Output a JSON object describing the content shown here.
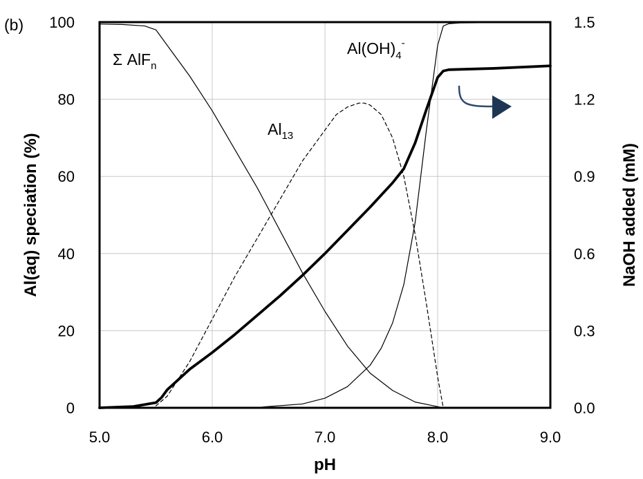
{
  "chart_data": {
    "type": "line",
    "panel_label": "(b)",
    "xlabel": "pH",
    "ylabel_left": "Al(aq) speciation (%)",
    "ylabel_right": "NaOH added (mM)",
    "xlim": [
      5.0,
      9.0
    ],
    "ylim_left": [
      0,
      100
    ],
    "ylim_right": [
      0.0,
      1.5
    ],
    "x_ticks": [
      "5.0",
      "6.0",
      "7.0",
      "8.0",
      "9.0"
    ],
    "y_left_ticks": [
      "0",
      "20",
      "40",
      "60",
      "80",
      "100"
    ],
    "y_right_ticks": [
      "0.0",
      "0.3",
      "0.6",
      "0.9",
      "1.2",
      "1.5"
    ],
    "grid": true,
    "series": [
      {
        "axis": "left",
        "style": "thin",
        "x": [
          5.0,
          5.2,
          5.4,
          5.5,
          5.6,
          5.8,
          6.0,
          6.2,
          6.4,
          6.6,
          6.8,
          7.0,
          7.2,
          7.4,
          7.6,
          7.8,
          8.0,
          8.05
        ],
        "values": [
          99.5,
          99.4,
          99,
          98,
          94,
          86,
          77,
          67,
          57,
          46,
          35,
          25,
          16,
          9,
          4.5,
          1.5,
          0.3,
          0
        ]
      },
      {
        "axis": "left",
        "style": "dashed",
        "x": [
          5.5,
          5.6,
          5.8,
          6.0,
          6.2,
          6.4,
          6.6,
          6.8,
          7.0,
          7.1,
          7.2,
          7.3,
          7.35,
          7.4,
          7.5,
          7.6,
          7.7,
          7.8,
          7.9,
          8.0,
          8.05
        ],
        "values": [
          0.5,
          3,
          12,
          23,
          34,
          44,
          54,
          64,
          72,
          76,
          78,
          79,
          79,
          78.5,
          76,
          70,
          60,
          45,
          27,
          8,
          0
        ]
      },
      {
        "axis": "left",
        "style": "thin",
        "x": [
          6.0,
          6.4,
          6.8,
          7.0,
          7.2,
          7.4,
          7.5,
          7.6,
          7.7,
          7.8,
          7.9,
          8.0,
          8.05,
          8.1,
          8.2,
          9.0
        ],
        "values": [
          0,
          0.1,
          1,
          2.5,
          5.5,
          11,
          15.5,
          22,
          32,
          48,
          72,
          94,
          99,
          99.6,
          99.8,
          100
        ]
      },
      {
        "axis": "right",
        "style": "bold",
        "x": [
          5.0,
          5.3,
          5.5,
          5.55,
          5.6,
          5.8,
          6.0,
          6.2,
          6.4,
          6.6,
          6.8,
          7.0,
          7.2,
          7.4,
          7.6,
          7.7,
          7.8,
          7.9,
          8.0,
          8.05,
          8.1,
          8.5,
          9.0
        ],
        "values": [
          0.0,
          0.005,
          0.02,
          0.04,
          0.07,
          0.15,
          0.215,
          0.285,
          0.36,
          0.435,
          0.515,
          0.6,
          0.69,
          0.78,
          0.875,
          0.93,
          1.03,
          1.16,
          1.285,
          1.31,
          1.315,
          1.32,
          1.33
        ]
      }
    ],
    "annotations": {
      "alf": {
        "main": "Σ AlF",
        "sub": "n"
      },
      "al13": {
        "main": "Al",
        "sub": "13"
      },
      "aloh": {
        "main": "Al(OH)",
        "sub": "4",
        "sup": "-"
      }
    }
  }
}
